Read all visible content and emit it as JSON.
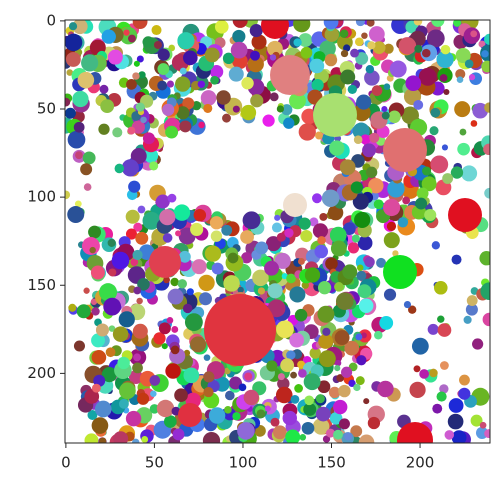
{
  "chart_data": {
    "type": "image",
    "xlim": [
      -0.5,
      239.5
    ],
    "ylim": [
      239.5,
      -0.5
    ],
    "xticks": [
      0,
      50,
      100,
      150,
      200
    ],
    "yticks": [
      0,
      50,
      100,
      150,
      200
    ]
  }
}
